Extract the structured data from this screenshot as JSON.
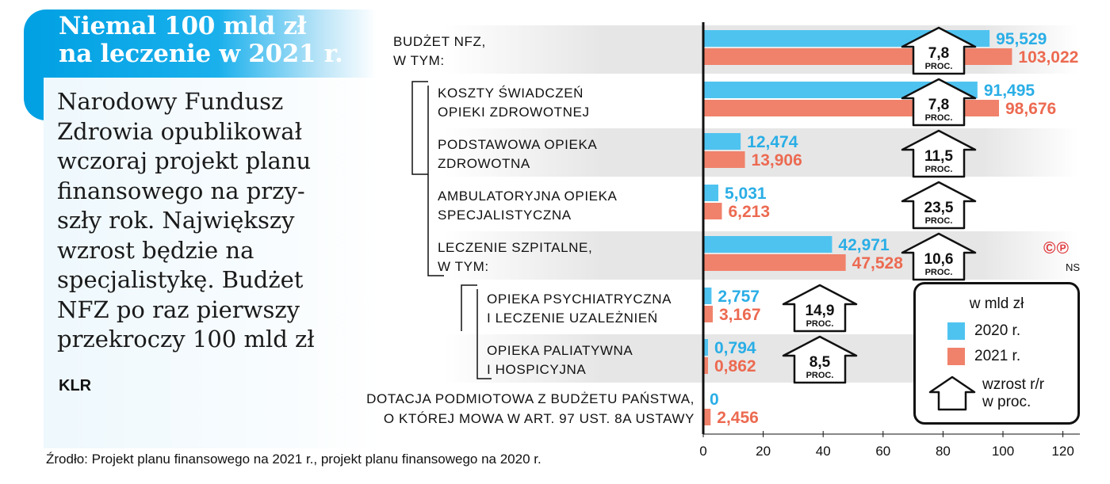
{
  "title": "Niemal 100 mld zł\nna leczenie w 2021 r.",
  "body": "Narodowy Fundusz\nZdrowia opublikował\nwczoraj projekt planu\nfinansowego na przy-\nszły rok. Największy\nwzrost będzie na\nspecjalistykę. Budżet\nNFZ po raz pierwszy\nprzekroczy 100 mld zł",
  "author": "KLR",
  "source": "Źrodło: Projekt planu finansowego na 2021 r., projekt planu finansowego na 2020 r.",
  "legend": {
    "title": "w mld zł",
    "label_2020": "2020 r.",
    "label_2021": "2021 r.",
    "arrow_label": "wzrost r/r\nw proc."
  },
  "copyright": "©℗",
  "ns": "NS",
  "colors": {
    "y2020": "#4fc3f0",
    "y2021": "#f0826b",
    "title_bg": "#00a0e3",
    "copyright": "#e0393e"
  },
  "chart_data": {
    "type": "bar",
    "orientation": "horizontal",
    "xlim": [
      0,
      120
    ],
    "xticks": [
      0,
      20,
      40,
      60,
      80,
      100,
      120
    ],
    "series": [
      {
        "name": "2020 r.",
        "color": "#4fc3f0"
      },
      {
        "name": "2021 r.",
        "color": "#f0826b"
      }
    ],
    "categories": [
      {
        "label": "BUDŻET NFZ,\nW TYM:",
        "v2020": 95.529,
        "v2021": 103.022,
        "l2020": "95,529",
        "l2021": "103,022",
        "growth": "7,8",
        "unit": "PROC."
      },
      {
        "label": "KOSZTY ŚWIADCZEŃ\nOPIEKI ZDROWOTNEJ",
        "v2020": 91.495,
        "v2021": 98.676,
        "l2020": "91,495",
        "l2021": "98,676",
        "growth": "7,8",
        "unit": "PROC."
      },
      {
        "label": "PODSTAWOWA OPIEKA\nZDROWOTNA",
        "v2020": 12.474,
        "v2021": 13.906,
        "l2020": "12,474",
        "l2021": "13,906",
        "growth": "11,5",
        "unit": "PROC."
      },
      {
        "label": "AMBULATORYJNA OPIEKA\nSPECJALISTYCZNA",
        "v2020": 5.031,
        "v2021": 6.213,
        "l2020": "5,031",
        "l2021": "6,213",
        "growth": "23,5",
        "unit": "PROC."
      },
      {
        "label": "LECZENIE SZPITALNE,\nW TYM:",
        "v2020": 42.971,
        "v2021": 47.528,
        "l2020": "42,971",
        "l2021": "47,528",
        "growth": "10,6",
        "unit": "PROC."
      },
      {
        "label": "OPIEKA PSYCHIATRYCZNA\nI LECZENIE UZALEŻNIEŃ",
        "v2020": 2.757,
        "v2021": 3.167,
        "l2020": "2,757",
        "l2021": "3,167",
        "growth": "14,9",
        "unit": "PROC."
      },
      {
        "label": "OPIEKA PALIATYWNA\nI HOSPICYJNA",
        "v2020": 0.794,
        "v2021": 0.862,
        "l2020": "0,794",
        "l2021": "0,862",
        "growth": "8,5",
        "unit": "PROC."
      },
      {
        "label": "DOTACJA PODMIOTOWA Z BUDŻETU PAŃSTWA,\nO KTÓREJ MOWA W ART. 97 UST. 8A USTAWY",
        "v2020": 0,
        "v2021": 2.456,
        "l2020": "0",
        "l2021": "2,456",
        "growth": "",
        "unit": ""
      }
    ]
  }
}
